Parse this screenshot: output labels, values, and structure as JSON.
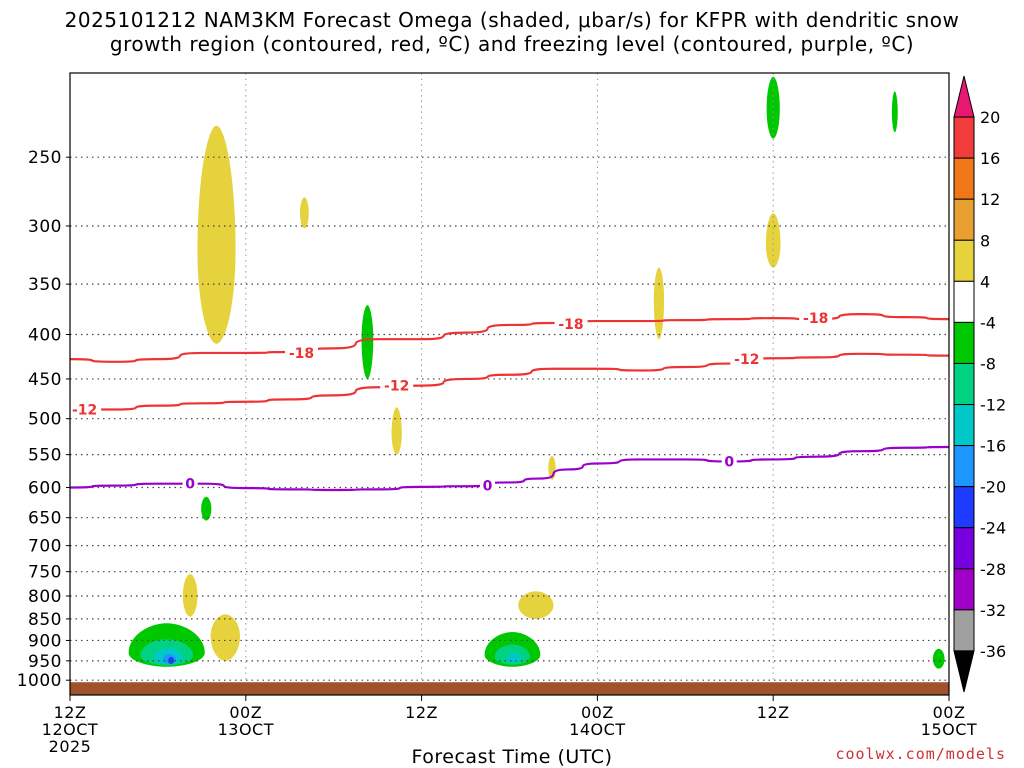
{
  "title": {
    "line1": "2025101212 NAM3KM Forecast Omega (shaded, μbar/s) for KFPR with dendritic snow",
    "line2": "growth region (contoured, red, ºC) and freezing level (contoured, purple, ºC)"
  },
  "credit": "coolwx.com/models",
  "chart_data": {
    "type": "time-height cross section",
    "title": "2025101212 NAM3KM Forecast Omega (shaded, μbar/s) for KFPR with dendritic snow growth region (contoured, red, ºC) and freezing level (contoured, purple, ºC)",
    "xlabel": "Forecast Time (UTC)",
    "ylabel": "",
    "x_range_hours": [
      0,
      60
    ],
    "x_ticks": [
      {
        "hour": 0,
        "label1": "12Z",
        "label2": "12OCT",
        "label3": "2025"
      },
      {
        "hour": 12,
        "label1": "00Z",
        "label2": "13OCT",
        "label3": ""
      },
      {
        "hour": 24,
        "label1": "12Z",
        "label2": "",
        "label3": ""
      },
      {
        "hour": 36,
        "label1": "00Z",
        "label2": "14OCT",
        "label3": ""
      },
      {
        "hour": 48,
        "label1": "12Z",
        "label2": "",
        "label3": ""
      },
      {
        "hour": 60,
        "label1": "00Z",
        "label2": "15OCT",
        "label3": ""
      }
    ],
    "y_range_hpa": [
      200,
      1040
    ],
    "y_scale": "log",
    "y_ticks": [
      250,
      300,
      350,
      400,
      450,
      500,
      550,
      600,
      650,
      700,
      750,
      800,
      850,
      900,
      950,
      1000
    ],
    "grid": true,
    "colorbar": {
      "ticks": [
        "20",
        "16",
        "12",
        "8",
        "4",
        "-4",
        "-8",
        "-12",
        "-16",
        "-20",
        "-24",
        "-28",
        "-32",
        "-36"
      ],
      "colors_top_to_bottom": [
        "#e8176f",
        "#f03c3c",
        "#f07818",
        "#e8a030",
        "#e6d23c",
        "#ffffff",
        "#00c800",
        "#00d282",
        "#00c8c8",
        "#1e96ff",
        "#1e3cff",
        "#7800dc",
        "#a000c8",
        "#a0a0a0",
        "#000000"
      ]
    },
    "ground_color": "#a0522d",
    "series": [
      {
        "name": "-18",
        "color": "#ee3333",
        "points": [
          [
            0,
            427
          ],
          [
            3,
            430
          ],
          [
            6,
            427
          ],
          [
            9,
            420
          ],
          [
            12,
            420
          ],
          [
            15,
            419
          ],
          [
            18,
            415
          ],
          [
            21,
            405
          ],
          [
            24,
            405
          ],
          [
            27,
            398
          ],
          [
            30,
            390
          ],
          [
            33,
            388
          ],
          [
            36,
            386
          ],
          [
            39,
            386
          ],
          [
            42,
            385
          ],
          [
            45,
            384
          ],
          [
            48,
            383
          ],
          [
            51,
            384
          ],
          [
            54,
            379
          ],
          [
            57,
            382
          ],
          [
            60,
            384
          ]
        ]
      },
      {
        "name": "-12",
        "color": "#ee3333",
        "points": [
          [
            0,
            488
          ],
          [
            3,
            488
          ],
          [
            6,
            483
          ],
          [
            9,
            480
          ],
          [
            12,
            478
          ],
          [
            15,
            475
          ],
          [
            18,
            470
          ],
          [
            21,
            460
          ],
          [
            24,
            458
          ],
          [
            27,
            450
          ],
          [
            30,
            445
          ],
          [
            33,
            438
          ],
          [
            36,
            438
          ],
          [
            39,
            440
          ],
          [
            42,
            436
          ],
          [
            45,
            432
          ],
          [
            48,
            426
          ],
          [
            51,
            425
          ],
          [
            54,
            421
          ],
          [
            57,
            422
          ],
          [
            60,
            423
          ]
        ]
      },
      {
        "name": "0",
        "color": "#9900cc",
        "points": [
          [
            0,
            600
          ],
          [
            3,
            597
          ],
          [
            6,
            594
          ],
          [
            9,
            594
          ],
          [
            12,
            601
          ],
          [
            15,
            603
          ],
          [
            18,
            604
          ],
          [
            21,
            603
          ],
          [
            24,
            599
          ],
          [
            27,
            598
          ],
          [
            30,
            592
          ],
          [
            32,
            586
          ],
          [
            34,
            572
          ],
          [
            36,
            563
          ],
          [
            39,
            557
          ],
          [
            42,
            557
          ],
          [
            45,
            560
          ],
          [
            48,
            557
          ],
          [
            51,
            553
          ],
          [
            54,
            545
          ],
          [
            57,
            540
          ],
          [
            60,
            539
          ]
        ]
      }
    ],
    "contour_labels": [
      {
        "text": "-18",
        "hour": 15.8,
        "hpa": 420
      },
      {
        "text": "-18",
        "hour": 34.2,
        "hpa": 389
      },
      {
        "text": "-18",
        "hour": 50.9,
        "hpa": 383
      },
      {
        "text": "-12",
        "hour": 46.2,
        "hpa": 427
      },
      {
        "text": "-12",
        "hour": 22.3,
        "hpa": 458
      },
      {
        "text": "-12",
        "hour": 1.0,
        "hpa": 488
      },
      {
        "text": "0",
        "hour": 8.2,
        "hpa": 594
      },
      {
        "text": "0",
        "hour": 28.5,
        "hpa": 597
      },
      {
        "text": "0",
        "hour": 45.0,
        "hpa": 560
      }
    ],
    "omega_blobs": [
      {
        "level": "4",
        "color": "#e6d23c",
        "hour": 10.0,
        "hpa": 320,
        "dh": 1.3,
        "dp_top": 90,
        "dp_bot": 90
      },
      {
        "level": "4",
        "color": "#e6d23c",
        "hour": 16.0,
        "hpa": 290,
        "dh": 0.3,
        "dp_top": 12,
        "dp_bot": 12
      },
      {
        "level": "4",
        "color": "#e6d23c",
        "hour": 40.2,
        "hpa": 365,
        "dh": 0.35,
        "dp_top": 30,
        "dp_bot": 40
      },
      {
        "level": "4",
        "color": "#e6d23c",
        "hour": 48.0,
        "hpa": 315,
        "dh": 0.5,
        "dp_top": 25,
        "dp_bot": 20
      },
      {
        "level": "4",
        "color": "#e6d23c",
        "hour": 22.3,
        "hpa": 520,
        "dh": 0.35,
        "dp_top": 35,
        "dp_bot": 30
      },
      {
        "level": "4",
        "color": "#e6d23c",
        "hour": 32.9,
        "hpa": 570,
        "dh": 0.25,
        "dp_top": 18,
        "dp_bot": 18
      },
      {
        "level": "4",
        "color": "#e6d23c",
        "hour": 8.2,
        "hpa": 800,
        "dh": 0.5,
        "dp_top": 45,
        "dp_bot": 45
      },
      {
        "level": "4",
        "color": "#e6d23c",
        "hour": 10.6,
        "hpa": 890,
        "dh": 1.0,
        "dp_top": 50,
        "dp_bot": 60
      },
      {
        "level": "4",
        "color": "#e6d23c",
        "hour": 31.8,
        "hpa": 820,
        "dh": 1.2,
        "dp_top": 30,
        "dp_bot": 30
      },
      {
        "level": "-4",
        "color": "#00c800",
        "hour": 20.3,
        "hpa": 405,
        "dh": 0.4,
        "dp_top": 35,
        "dp_bot": 45
      },
      {
        "level": "-4",
        "color": "#00c800",
        "hour": 48.0,
        "hpa": 220,
        "dh": 0.45,
        "dp_top": 18,
        "dp_bot": 18
      },
      {
        "level": "-4",
        "color": "#00c800",
        "hour": 56.3,
        "hpa": 222,
        "dh": 0.2,
        "dp_top": 12,
        "dp_bot": 12
      },
      {
        "level": "-4",
        "color": "#00c800",
        "hour": 9.3,
        "hpa": 635,
        "dh": 0.35,
        "dp_top": 20,
        "dp_bot": 20
      },
      {
        "level": "-4",
        "color": "#00c800",
        "hour": 59.3,
        "hpa": 945,
        "dh": 0.4,
        "dp_top": 25,
        "dp_bot": 25
      },
      {
        "level": "-4",
        "color": "#00c800",
        "hour": 6.6,
        "hpa": 930,
        "dh": 2.6,
        "dp_top": 70,
        "dp_bot": 35
      },
      {
        "level": "-8",
        "color": "#00d282",
        "hour": 6.6,
        "hpa": 937,
        "dh": 1.8,
        "dp_top": 40,
        "dp_bot": 25
      },
      {
        "level": "-12",
        "color": "#00c8c8",
        "hour": 6.7,
        "hpa": 943,
        "dh": 1.0,
        "dp_top": 25,
        "dp_bot": 15
      },
      {
        "level": "-16",
        "color": "#1e96ff",
        "hour": 6.8,
        "hpa": 948,
        "dh": 0.45,
        "dp_top": 15,
        "dp_bot": 10
      },
      {
        "level": "-20",
        "color": "#1e3cff",
        "hour": 6.9,
        "hpa": 950,
        "dh": 0.2,
        "dp_top": 10,
        "dp_bot": 8
      },
      {
        "level": "-4",
        "color": "#00c800",
        "hour": 30.2,
        "hpa": 935,
        "dh": 1.9,
        "dp_top": 55,
        "dp_bot": 30
      },
      {
        "level": "-8",
        "color": "#00d282",
        "hour": 30.2,
        "hpa": 940,
        "dh": 1.2,
        "dp_top": 30,
        "dp_bot": 20
      },
      {
        "level": "-12",
        "color": "#00c8c8",
        "hour": 30.3,
        "hpa": 945,
        "dh": 0.5,
        "dp_top": 15,
        "dp_bot": 10
      }
    ]
  }
}
